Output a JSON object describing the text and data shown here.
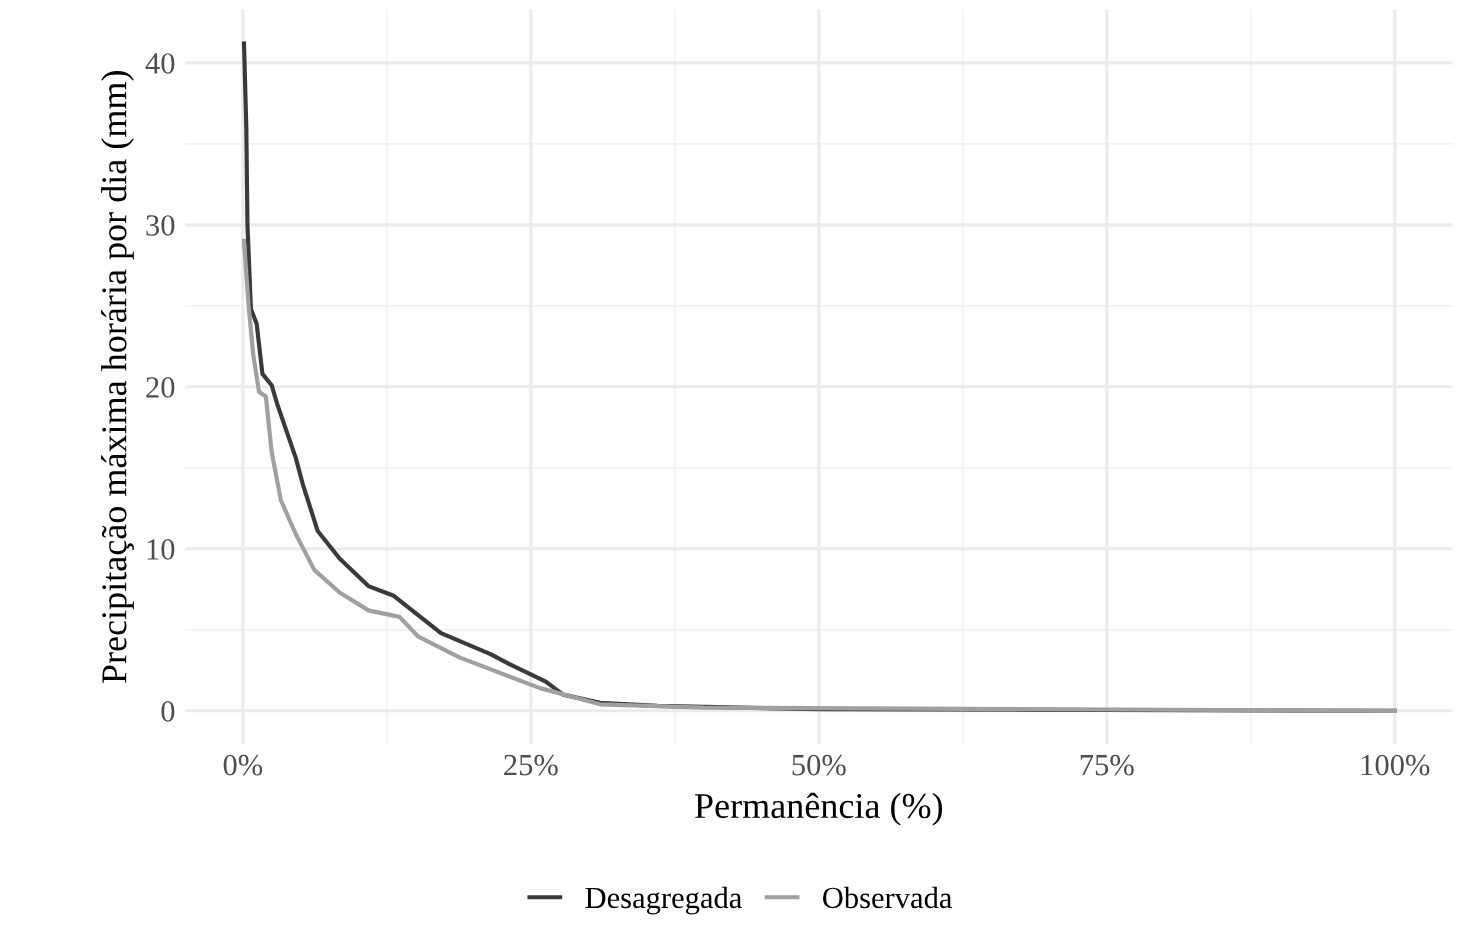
{
  "chart_data": {
    "type": "line",
    "xlabel": "Permanência (%)",
    "ylabel": "Precipitação máxima horária por dia (mm)",
    "xlim": [
      -5,
      105
    ],
    "ylim": [
      -2.06,
      43.3
    ],
    "xticks": [
      {
        "value": 0,
        "label": "0%"
      },
      {
        "value": 25,
        "label": "25%"
      },
      {
        "value": 50,
        "label": "50%"
      },
      {
        "value": 75,
        "label": "75%"
      },
      {
        "value": 100,
        "label": "100%"
      }
    ],
    "yticks": [
      0,
      10,
      20,
      30,
      40
    ],
    "grid": true,
    "legend": "bottom",
    "series": [
      {
        "name": "Desagregada",
        "color": "#3a3a3a",
        "x": [
          0.1,
          0.3,
          0.4,
          0.7,
          1.2,
          1.7,
          2.5,
          3.0,
          4.6,
          5.2,
          6.5,
          8.4,
          10.9,
          13.1,
          17.2,
          21.5,
          23.1,
          26.3,
          27.8,
          31,
          36,
          50,
          100
        ],
        "values": [
          41.2,
          36,
          30,
          24.8,
          23.9,
          20.8,
          20.1,
          18.9,
          15.6,
          14,
          11.1,
          9.4,
          7.7,
          7.1,
          4.8,
          3.5,
          2.9,
          1.8,
          1.0,
          0.5,
          0.3,
          0.1,
          0
        ]
      },
      {
        "name": "Observada",
        "color": "#a0a0a0",
        "x": [
          0.1,
          0.5,
          0.9,
          1.4,
          2.0,
          2.5,
          3.3,
          4.6,
          6.2,
          8.4,
          10.9,
          13.6,
          15.2,
          18.8,
          25.8,
          31,
          40,
          100
        ],
        "values": [
          29,
          25,
          22,
          19.7,
          19.4,
          16,
          13,
          10.9,
          8.7,
          7.3,
          6.2,
          5.8,
          4.6,
          3.3,
          1.4,
          0.4,
          0.2,
          0
        ]
      }
    ]
  }
}
